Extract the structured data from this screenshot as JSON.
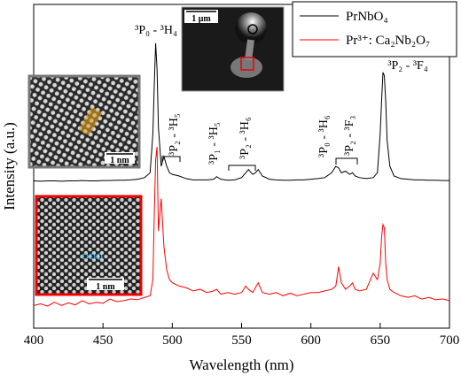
{
  "chart_data": {
    "type": "line",
    "x_label": "Wavelength (nm)",
    "y_label": "Intensity (a.u.)",
    "xlim": [
      400,
      700
    ],
    "xticks": [
      400,
      450,
      500,
      550,
      600,
      650,
      700
    ],
    "ylim": [
      0,
      1
    ],
    "legend": "upper right",
    "x": [
      400,
      405,
      410,
      415,
      420,
      425,
      430,
      435,
      440,
      445,
      450,
      455,
      460,
      465,
      470,
      475,
      480,
      484,
      486,
      487,
      488,
      489,
      490,
      492,
      494,
      496,
      498,
      500,
      505,
      510,
      515,
      520,
      525,
      530,
      532,
      535,
      540,
      545,
      550,
      553,
      555,
      558,
      560,
      562,
      565,
      570,
      575,
      580,
      585,
      590,
      595,
      600,
      605,
      610,
      615,
      618,
      620,
      622,
      625,
      628,
      630,
      632,
      635,
      640,
      645,
      648,
      650,
      651,
      652,
      653,
      654,
      655,
      657,
      660,
      665,
      670,
      675,
      680,
      685,
      690,
      695,
      700
    ],
    "series": [
      {
        "name": "PrNbO₄",
        "color": "#000000",
        "values": [
          0.455,
          0.454,
          0.455,
          0.455,
          0.454,
          0.455,
          0.455,
          0.456,
          0.455,
          0.455,
          0.456,
          0.456,
          0.457,
          0.457,
          0.458,
          0.46,
          0.465,
          0.48,
          0.6,
          0.75,
          0.88,
          0.8,
          0.62,
          0.5,
          0.53,
          0.5,
          0.48,
          0.475,
          0.47,
          0.462,
          0.458,
          0.458,
          0.458,
          0.46,
          0.468,
          0.46,
          0.457,
          0.458,
          0.465,
          0.48,
          0.49,
          0.475,
          0.48,
          0.49,
          0.47,
          0.46,
          0.458,
          0.457,
          0.457,
          0.458,
          0.458,
          0.46,
          0.462,
          0.465,
          0.48,
          0.5,
          0.495,
          0.48,
          0.485,
          0.475,
          0.48,
          0.47,
          0.465,
          0.462,
          0.465,
          0.48,
          0.6,
          0.7,
          0.79,
          0.78,
          0.7,
          0.58,
          0.5,
          0.47,
          0.462,
          0.46,
          0.458,
          0.458,
          0.457,
          0.457,
          0.456,
          0.456
        ]
      },
      {
        "name": "Pr³⁺: Ca₂Nb₂O₇",
        "color": "#ff0000",
        "values": [
          0.07,
          0.075,
          0.068,
          0.08,
          0.07,
          0.078,
          0.072,
          0.085,
          0.075,
          0.08,
          0.077,
          0.09,
          0.082,
          0.085,
          0.09,
          0.088,
          0.095,
          0.1,
          0.15,
          0.35,
          0.52,
          0.56,
          0.3,
          0.4,
          0.25,
          0.18,
          0.15,
          0.14,
          0.13,
          0.125,
          0.115,
          0.12,
          0.11,
          0.115,
          0.12,
          0.105,
          0.11,
          0.105,
          0.11,
          0.13,
          0.12,
          0.11,
          0.125,
          0.14,
          0.11,
          0.105,
          0.11,
          0.1,
          0.108,
          0.1,
          0.105,
          0.11,
          0.11,
          0.115,
          0.12,
          0.13,
          0.19,
          0.14,
          0.12,
          0.13,
          0.14,
          0.12,
          0.115,
          0.12,
          0.17,
          0.15,
          0.2,
          0.28,
          0.32,
          0.31,
          0.2,
          0.15,
          0.12,
          0.11,
          0.1,
          0.095,
          0.1,
          0.09,
          0.095,
          0.088,
          0.09,
          0.085
        ]
      }
    ],
    "annotations": [
      "³P₀ - ³H₄",
      "³P₂ - ³F₄",
      "³P₂ - ³H₅",
      "³P₁ - ³H₅",
      "³P₂ - ³H₆",
      "³P₀ - ³H₆",
      "³P₂ - ³F₃"
    ],
    "inset_labels": [
      "1 μm",
      "1 nm",
      "1 nm"
    ]
  }
}
